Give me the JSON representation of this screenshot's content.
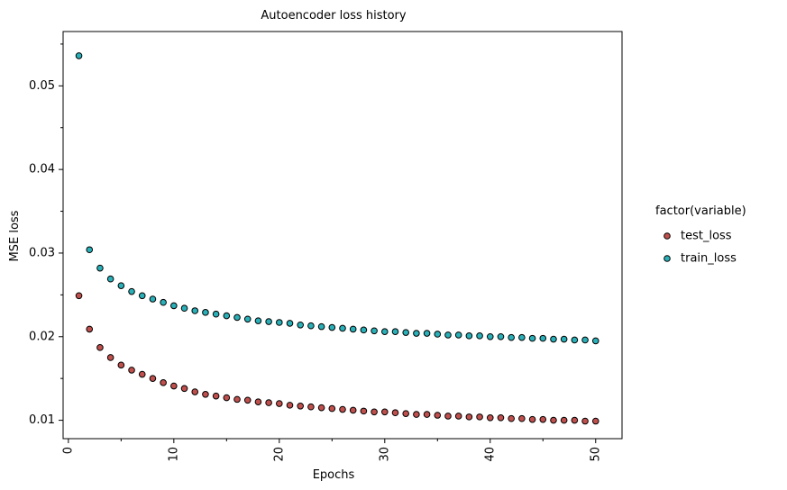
{
  "chart_data": {
    "type": "scatter",
    "title": "Autoencoder loss history",
    "xlabel": "Epochs",
    "ylabel": "MSE loss",
    "xlim": [
      -0.5,
      52.5
    ],
    "ylim": [
      0.0078,
      0.0565
    ],
    "x_ticks": [
      0,
      10,
      20,
      30,
      40,
      50
    ],
    "x_tick_labels": [
      "0",
      "10",
      "20",
      "30",
      "40",
      "50"
    ],
    "y_ticks": [
      0.01,
      0.02,
      0.03,
      0.04,
      0.05
    ],
    "y_tick_labels": [
      "0.01",
      "0.02",
      "0.03",
      "0.04",
      "0.05"
    ],
    "legend": {
      "title": "factor(variable)",
      "placement": "right"
    },
    "grid": false,
    "x": [
      1,
      2,
      3,
      4,
      5,
      6,
      7,
      8,
      9,
      10,
      11,
      12,
      13,
      14,
      15,
      16,
      17,
      18,
      19,
      20,
      21,
      22,
      23,
      24,
      25,
      26,
      27,
      28,
      29,
      30,
      31,
      32,
      33,
      34,
      35,
      36,
      37,
      38,
      39,
      40,
      41,
      42,
      43,
      44,
      45,
      46,
      47,
      48,
      49,
      50
    ],
    "series": [
      {
        "name": "test_loss",
        "color": "#c0504d",
        "values": [
          0.0249,
          0.0209,
          0.0187,
          0.0175,
          0.0166,
          0.016,
          0.0155,
          0.015,
          0.0145,
          0.0141,
          0.0138,
          0.0134,
          0.0131,
          0.0129,
          0.0127,
          0.0125,
          0.0124,
          0.0122,
          0.0121,
          0.012,
          0.0118,
          0.0117,
          0.0116,
          0.0115,
          0.0114,
          0.0113,
          0.0112,
          0.0111,
          0.011,
          0.011,
          0.0109,
          0.0108,
          0.0107,
          0.0107,
          0.0106,
          0.0105,
          0.0105,
          0.0104,
          0.0104,
          0.0103,
          0.0103,
          0.0102,
          0.0102,
          0.0101,
          0.0101,
          0.01,
          0.01,
          0.01,
          0.0099,
          0.0099
        ]
      },
      {
        "name": "train_loss",
        "color": "#2ab0b8",
        "values": [
          0.0536,
          0.0304,
          0.0282,
          0.0269,
          0.0261,
          0.0254,
          0.0249,
          0.0245,
          0.0241,
          0.0237,
          0.0234,
          0.0231,
          0.0229,
          0.0227,
          0.0225,
          0.0223,
          0.0221,
          0.0219,
          0.0218,
          0.0217,
          0.0216,
          0.0214,
          0.0213,
          0.0212,
          0.0211,
          0.021,
          0.0209,
          0.0208,
          0.0207,
          0.0206,
          0.0206,
          0.0205,
          0.0204,
          0.0204,
          0.0203,
          0.0202,
          0.0202,
          0.0201,
          0.0201,
          0.02,
          0.02,
          0.0199,
          0.0199,
          0.0198,
          0.0198,
          0.0197,
          0.0197,
          0.0196,
          0.0196,
          0.0195
        ]
      }
    ]
  }
}
